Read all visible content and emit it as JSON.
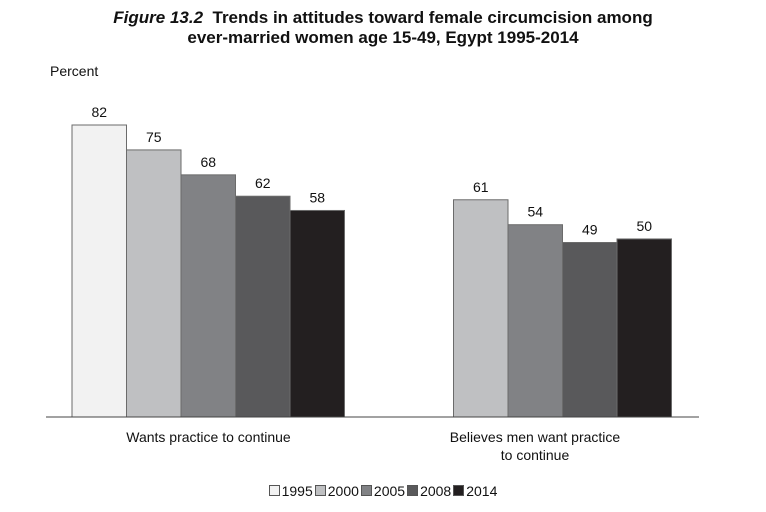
{
  "title": {
    "figure_label": "Figure 13.2",
    "line1": "Trends in attitudes toward female circumcision among",
    "line2": "ever-married women age 15-49, Egypt 1995-2014"
  },
  "chart_data": {
    "type": "bar",
    "ylabel": "Percent",
    "xlabel": "",
    "ylim": [
      0,
      100
    ],
    "grid": false,
    "legend_position": "bottom",
    "categories": [
      [
        "Wants practice to continue"
      ],
      [
        "Believes men want practice",
        "to continue"
      ]
    ],
    "series": [
      {
        "name": "1995",
        "values": [
          82,
          null
        ],
        "color": "#f2f2f2"
      },
      {
        "name": "2000",
        "values": [
          75,
          61
        ],
        "color": "#bfc0c2"
      },
      {
        "name": "2005",
        "values": [
          68,
          54
        ],
        "color": "#818285"
      },
      {
        "name": "2008",
        "values": [
          62,
          49
        ],
        "color": "#59595b"
      },
      {
        "name": "2014",
        "values": [
          58,
          50
        ],
        "color": "#231f20"
      }
    ]
  }
}
